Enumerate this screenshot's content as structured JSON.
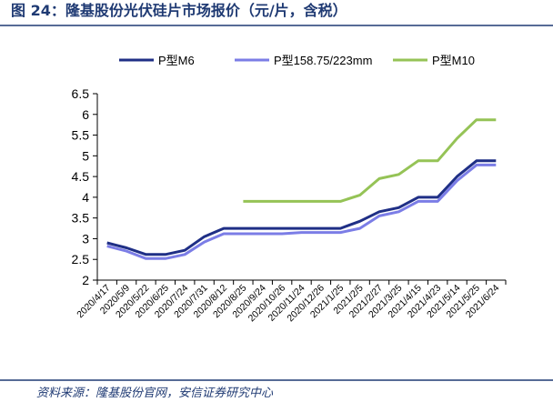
{
  "header": {
    "title": "图 24：隆基股份光伏硅片市场报价（元/片，含税）"
  },
  "footer": {
    "source": "资料来源：隆基股份官网，安信证券研究中心"
  },
  "colors": {
    "header_rule": "#1f3a73",
    "p_m6": "#1f2f86",
    "p_158": "#7b7de6",
    "p_m10": "#95c356",
    "axis": "#000000"
  },
  "chart_data": {
    "type": "line",
    "title": "",
    "xlabel": "",
    "ylabel": "",
    "ylim": [
      2,
      6.5
    ],
    "yticks": [
      "2",
      "2.5",
      "3",
      "3.5",
      "4",
      "4.5",
      "5",
      "5.5",
      "6",
      "6.5"
    ],
    "categories": [
      "2020/4/17",
      "2020/5/9",
      "2020/5/22",
      "2020/6/25",
      "2020/7/24",
      "2020/7/31",
      "2020/8/12",
      "2020/8/25",
      "2020/9/24",
      "2020/10/26",
      "2020/11/24",
      "2020/12/26",
      "2021/1/25",
      "2021/2/5",
      "2021/2/27",
      "2021/3/25",
      "2021/4/15",
      "2021/4/23",
      "2021/5/14",
      "2021/5/25",
      "2021/6/24"
    ],
    "legend_position": "top",
    "series": [
      {
        "name": "P型M6",
        "color_key": "p_m6",
        "values": [
          2.9,
          2.78,
          2.62,
          2.62,
          2.72,
          3.05,
          3.25,
          3.25,
          3.25,
          3.25,
          3.25,
          3.25,
          3.25,
          3.42,
          3.65,
          3.75,
          4.0,
          4.0,
          4.5,
          4.88,
          4.88
        ]
      },
      {
        "name": "P型158.75/223mm",
        "color_key": "p_158",
        "values": [
          2.82,
          2.7,
          2.52,
          2.52,
          2.62,
          2.92,
          3.12,
          3.12,
          3.12,
          3.12,
          3.15,
          3.15,
          3.15,
          3.25,
          3.55,
          3.65,
          3.9,
          3.9,
          4.4,
          4.78,
          4.78
        ]
      },
      {
        "name": "P型M10",
        "color_key": "p_m10",
        "values": [
          null,
          null,
          null,
          null,
          null,
          null,
          null,
          3.9,
          3.9,
          3.9,
          3.9,
          3.9,
          3.9,
          4.05,
          4.45,
          4.55,
          4.88,
          4.88,
          5.42,
          5.87,
          5.87
        ]
      }
    ]
  }
}
